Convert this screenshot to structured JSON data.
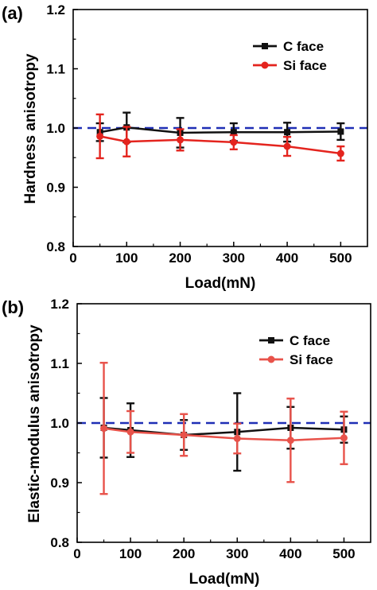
{
  "chart_data": [
    {
      "panel_label": "(a)",
      "type": "line",
      "xlabel": "Load(mN)",
      "ylabel": "Hardness anisotropy",
      "xlim": [
        0,
        550
      ],
      "ylim": [
        0.8,
        1.2
      ],
      "xticks": [
        "0",
        "100",
        "200",
        "300",
        "400",
        "500"
      ],
      "yticks": [
        "0.8",
        "0.9",
        "1.0",
        "1.1",
        "1.2"
      ],
      "reference_line": 1.0,
      "reference_color": "#1f2fb5",
      "legend_position": "top-right",
      "x": [
        50,
        100,
        200,
        300,
        400,
        500
      ],
      "series": [
        {
          "name": "C face",
          "color": "#111111",
          "marker": "square",
          "values": [
            0.993,
            1.001,
            0.992,
            0.993,
            0.993,
            0.994
          ],
          "errors": [
            0.015,
            0.025,
            0.025,
            0.015,
            0.016,
            0.014
          ]
        },
        {
          "name": "Si face",
          "color": "#e4241e",
          "marker": "circle",
          "values": [
            0.986,
            0.977,
            0.98,
            0.976,
            0.969,
            0.957
          ],
          "errors": [
            0.037,
            0.025,
            0.018,
            0.012,
            0.016,
            0.012
          ]
        }
      ]
    },
    {
      "panel_label": "(b)",
      "type": "line",
      "xlabel": "Load(mN)",
      "ylabel": "Elastic-modulus anisotropy",
      "xlim": [
        0,
        550
      ],
      "ylim": [
        0.8,
        1.2
      ],
      "xticks": [
        "0",
        "100",
        "200",
        "300",
        "400",
        "500"
      ],
      "yticks": [
        "0.8",
        "0.9",
        "1.0",
        "1.1",
        "1.2"
      ],
      "reference_line": 1.0,
      "reference_color": "#1f2fb5",
      "legend_position": "top-right",
      "x": [
        50,
        100,
        200,
        300,
        400,
        500
      ],
      "series": [
        {
          "name": "C face",
          "color": "#111111",
          "marker": "square",
          "values": [
            0.992,
            0.988,
            0.98,
            0.985,
            0.992,
            0.989
          ],
          "errors": [
            0.05,
            0.045,
            0.025,
            0.065,
            0.035,
            0.022
          ]
        },
        {
          "name": "Si face",
          "color": "#e8524a",
          "marker": "circle",
          "values": [
            0.991,
            0.985,
            0.98,
            0.974,
            0.971,
            0.975
          ],
          "errors": [
            0.11,
            0.035,
            0.035,
            0.025,
            0.07,
            0.044
          ]
        }
      ]
    }
  ]
}
